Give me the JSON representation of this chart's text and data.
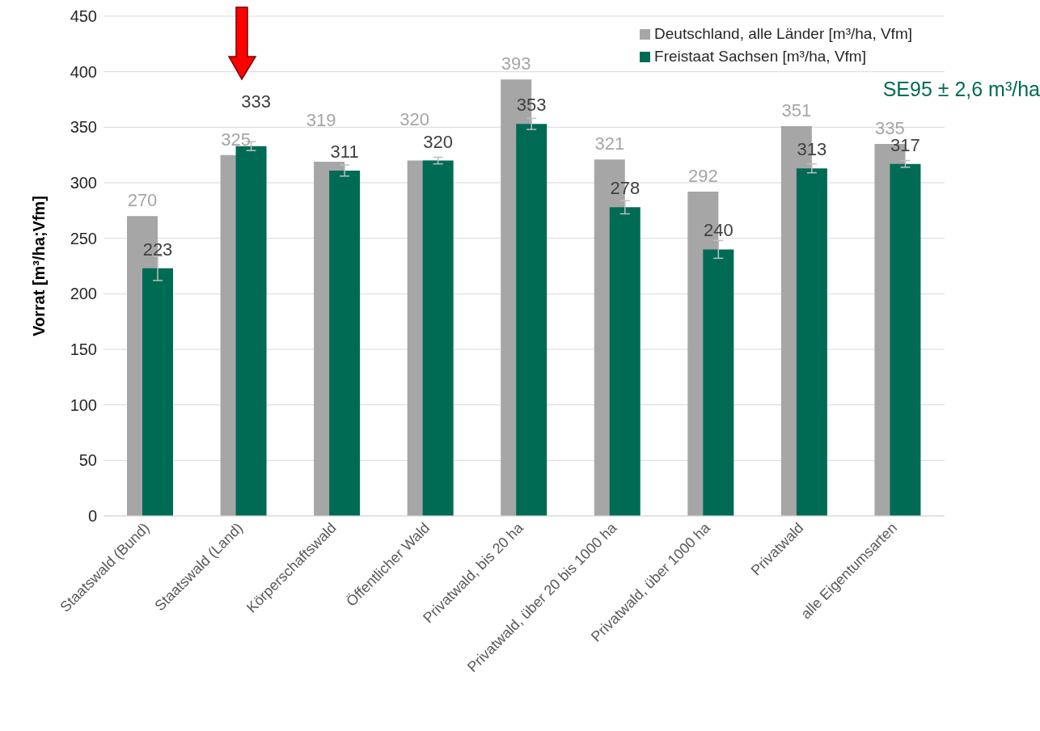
{
  "chart_data": {
    "type": "bar",
    "ylabel": "Vorrat [m³/ha;Vfm]",
    "categories": [
      "Staatswald (Bund)",
      "Staatswald (Land)",
      "Körperschaftswald",
      "Öffentlicher Wald",
      "Privatwald, bis 20 ha",
      "Privatwald, über 20 bis 1000 ha",
      "Privatwald, über 1000 ha",
      "Privatwald",
      "alle Eigentumsarten"
    ],
    "series": [
      {
        "name": "Deutschland, alle Länder [m³/ha, Vfm]",
        "color": "#a6a6a6",
        "values": [
          270,
          325,
          319,
          320,
          393,
          321,
          292,
          351,
          335
        ]
      },
      {
        "name": "Freistaat Sachsen [m³/ha, Vfm]",
        "color": "#006b54",
        "values": [
          223,
          333,
          311,
          320,
          353,
          278,
          240,
          313,
          317
        ],
        "errors": [
          11,
          4,
          5,
          3,
          5,
          6,
          8,
          4,
          3
        ]
      }
    ],
    "ylim": [
      0,
      450
    ],
    "yticks": [
      0,
      50,
      100,
      150,
      200,
      250,
      300,
      350,
      400,
      450
    ],
    "grid": "y",
    "legend": "top right",
    "data_labels": true,
    "annotations": [
      "SE95 ± 2,6 m³/ha"
    ]
  }
}
